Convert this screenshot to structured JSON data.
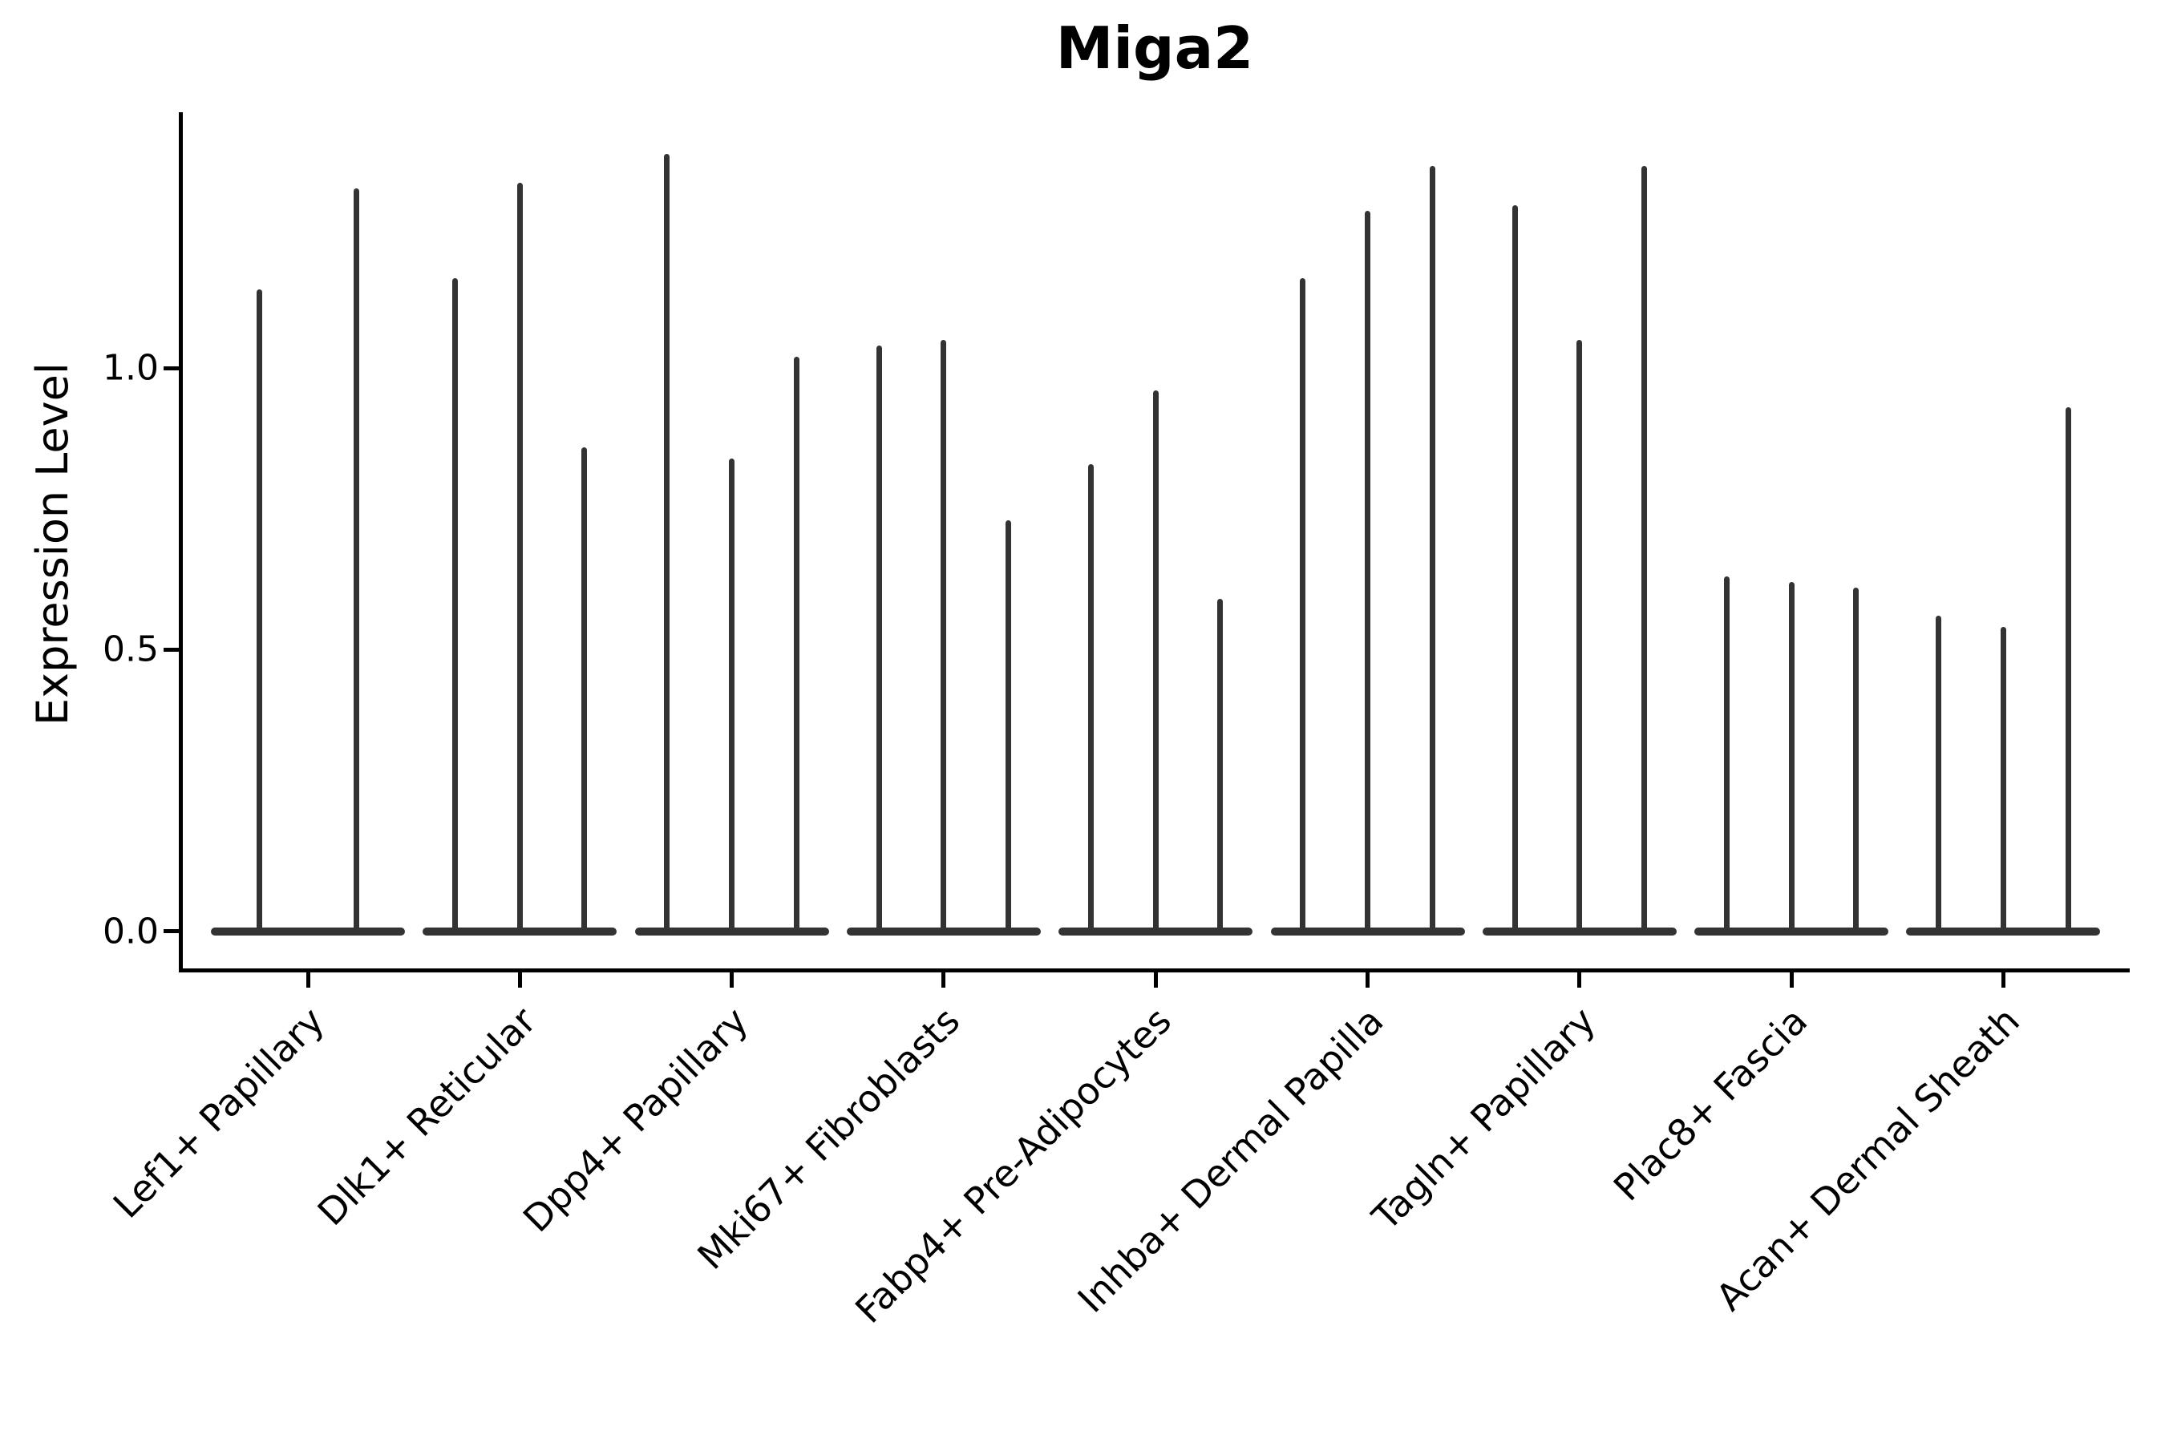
{
  "title": "Miga2",
  "colors": {
    "violin": "#333333",
    "axis": "#000000",
    "text": "#000000",
    "background": "#ffffff"
  },
  "chart_data": {
    "type": "violin",
    "title": "Miga2",
    "xlabel": "",
    "ylabel": "Expression Level",
    "ylim": [
      -0.07,
      1.45
    ],
    "grid": false,
    "legend": false,
    "yticks": [
      {
        "label": "0.0",
        "value": 0.0
      },
      {
        "label": "0.5",
        "value": 0.5
      },
      {
        "label": "1.0",
        "value": 1.0
      }
    ],
    "categories": [
      "Lef1+ Papillary",
      "Dlk1+ Reticular",
      "Dpp4+ Papillary",
      "Mki67+ Fibroblasts",
      "Fabp4+ Pre-Adipocytes",
      "Inhba+ Dermal Papilla",
      "Tagln+ Papillary",
      "Plac8+ Fascia",
      "Acan+ Dermal Sheath"
    ],
    "groups": [
      {
        "category": "Lef1+ Papillary",
        "violin_peaks": [
          1.14,
          1.32
        ]
      },
      {
        "category": "Dlk1+ Reticular",
        "violin_peaks": [
          1.16,
          1.33,
          0.86
        ]
      },
      {
        "category": "Dpp4+ Papillary",
        "violin_peaks": [
          1.38,
          0.84,
          1.02
        ]
      },
      {
        "category": "Mki67+ Fibroblasts",
        "violin_peaks": [
          1.04,
          1.05,
          0.73
        ]
      },
      {
        "category": "Fabp4+ Pre-Adipocytes",
        "violin_peaks": [
          0.83,
          0.96,
          0.59
        ]
      },
      {
        "category": "Inhba+ Dermal Papilla",
        "violin_peaks": [
          1.16,
          1.28,
          1.36
        ]
      },
      {
        "category": "Tagln+ Papillary",
        "violin_peaks": [
          1.29,
          1.05,
          1.36
        ]
      },
      {
        "category": "Plac8+ Fascia",
        "violin_peaks": [
          0.63,
          0.62,
          0.61
        ]
      },
      {
        "category": "Acan+ Dermal Sheath",
        "violin_peaks": [
          0.56,
          0.54,
          0.93
        ]
      }
    ],
    "note": "Each category shows thin spike-like violins with a wide flat density base at expression 0; peaks are the max expression of each violin."
  }
}
